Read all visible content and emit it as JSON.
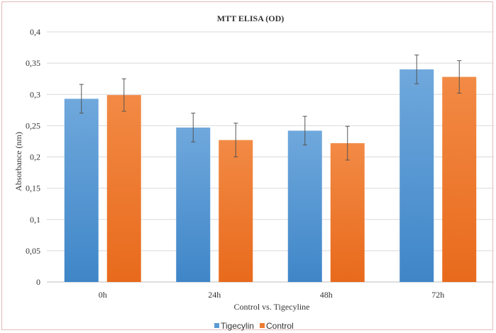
{
  "chart_data": {
    "type": "bar",
    "title": "MTT ELISA (OD)",
    "xlabel": "Control vs. Tigecyline",
    "ylabel": "Absorbance (nm)",
    "categories": [
      "0h",
      "24h",
      "48h",
      "72h"
    ],
    "ylim": [
      0,
      0.4
    ],
    "yticks": [
      0,
      0.05,
      0.1,
      0.15,
      0.2,
      0.25,
      0.3,
      0.35,
      0.4
    ],
    "ytick_labels": [
      "0",
      "0,05",
      "0,1",
      "0,15",
      "0,2",
      "0,25",
      "0,3",
      "0,35",
      "0,4"
    ],
    "grid": true,
    "legend_position": "bottom",
    "series": [
      {
        "name": "Tigecylin",
        "color": "#5b9bd5",
        "values": [
          0.293,
          0.247,
          0.242,
          0.34
        ],
        "errors": [
          0.023,
          0.023,
          0.023,
          0.023
        ]
      },
      {
        "name": "Control",
        "color": "#ed7d31",
        "values": [
          0.299,
          0.227,
          0.222,
          0.328
        ],
        "errors": [
          0.026,
          0.027,
          0.027,
          0.026
        ]
      }
    ]
  }
}
